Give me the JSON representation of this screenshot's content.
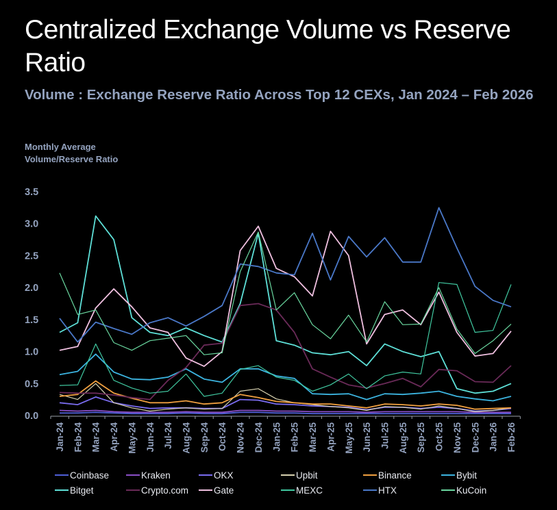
{
  "chart_data": {
    "type": "line",
    "title": "Centralized Exchange Volume vs Reserve Ratio",
    "subtitle": "Volume : Exchange Reserve Ratio Across Top 12 CEXs, Jan 2024 – Feb 2026",
    "xlabel": "",
    "ylabel": "Monthly Average Volume/Reserve Ratio",
    "ylim": [
      0,
      3.5
    ],
    "yticks": [
      "0.0",
      "0.5",
      "1.0",
      "1.5",
      "2.0",
      "2.5",
      "3.0",
      "3.5"
    ],
    "grid": false,
    "legend_position": "bottom",
    "x": [
      "Jan-24",
      "Feb-24",
      "Mar-24",
      "Apr-24",
      "May-24",
      "Jun-24",
      "Jul-24",
      "Aug-24",
      "Sep-24",
      "Oct-24",
      "Nov-24",
      "Dec-24",
      "Jan-25",
      "Feb-25",
      "Mar-25",
      "Apr-25",
      "May-25",
      "Jun-25",
      "Jul-25",
      "Aug-25",
      "Sep-25",
      "Oct-25",
      "Nov-25",
      "Dec-25",
      "Jan-26",
      "Feb-26"
    ],
    "series": [
      {
        "name": "Coinbase",
        "color": "#4f5fd8",
        "values": [
          0.04,
          0.04,
          0.05,
          0.04,
          0.03,
          0.03,
          0.03,
          0.04,
          0.03,
          0.03,
          0.05,
          0.05,
          0.04,
          0.04,
          0.03,
          0.03,
          0.03,
          0.03,
          0.03,
          0.03,
          0.03,
          0.03,
          0.03,
          0.03,
          0.03,
          0.03
        ]
      },
      {
        "name": "Kraken",
        "color": "#8a4fc8",
        "values": [
          0.08,
          0.07,
          0.08,
          0.06,
          0.05,
          0.05,
          0.05,
          0.06,
          0.05,
          0.05,
          0.08,
          0.08,
          0.07,
          0.07,
          0.06,
          0.06,
          0.06,
          0.05,
          0.06,
          0.06,
          0.06,
          0.06,
          0.06,
          0.05,
          0.05,
          0.05
        ]
      },
      {
        "name": "OKX",
        "color": "#7a6cf0",
        "values": [
          0.2,
          0.17,
          0.29,
          0.2,
          0.15,
          0.11,
          0.12,
          0.12,
          0.11,
          0.11,
          0.25,
          0.24,
          0.18,
          0.17,
          0.15,
          0.14,
          0.13,
          0.09,
          0.13,
          0.13,
          0.11,
          0.13,
          0.11,
          0.07,
          0.08,
          0.11
        ]
      },
      {
        "name": "Upbit",
        "color": "#d8d2b0",
        "values": [
          0.33,
          0.25,
          0.5,
          0.2,
          0.12,
          0.07,
          0.1,
          0.12,
          0.1,
          0.11,
          0.38,
          0.42,
          0.26,
          0.2,
          0.17,
          0.14,
          0.12,
          0.08,
          0.14,
          0.13,
          0.1,
          0.15,
          0.11,
          0.06,
          0.08,
          0.12
        ]
      },
      {
        "name": "Binance",
        "color": "#f0a040",
        "values": [
          0.3,
          0.33,
          0.54,
          0.35,
          0.27,
          0.2,
          0.2,
          0.23,
          0.18,
          0.2,
          0.33,
          0.28,
          0.22,
          0.2,
          0.18,
          0.18,
          0.15,
          0.12,
          0.18,
          0.17,
          0.15,
          0.18,
          0.16,
          0.1,
          0.11,
          0.12
        ]
      },
      {
        "name": "Bybit",
        "color": "#3cb4e0",
        "values": [
          0.64,
          0.69,
          0.96,
          0.68,
          0.57,
          0.56,
          0.6,
          0.73,
          0.57,
          0.52,
          0.73,
          0.73,
          0.62,
          0.58,
          0.34,
          0.33,
          0.34,
          0.25,
          0.34,
          0.33,
          0.35,
          0.38,
          0.3,
          0.26,
          0.23,
          0.3
        ]
      },
      {
        "name": "Bitget",
        "color": "#5ee0d8",
        "values": [
          1.3,
          1.45,
          3.12,
          2.75,
          1.53,
          1.3,
          1.25,
          1.37,
          1.25,
          1.15,
          1.75,
          2.85,
          1.17,
          1.1,
          0.98,
          0.95,
          1.0,
          0.78,
          1.12,
          1.0,
          0.92,
          1.0,
          0.42,
          0.35,
          0.38,
          0.5
        ]
      },
      {
        "name": "Crypto.com",
        "color": "#6a2a58",
        "values": [
          0.36,
          0.35,
          0.35,
          0.32,
          0.28,
          0.25,
          0.55,
          0.75,
          1.1,
          1.13,
          1.72,
          1.75,
          1.65,
          1.3,
          0.73,
          0.6,
          0.48,
          0.43,
          0.5,
          0.58,
          0.45,
          0.72,
          0.7,
          0.53,
          0.52,
          0.78
        ]
      },
      {
        "name": "Gate",
        "color": "#f0c0e0",
        "values": [
          1.02,
          1.08,
          1.68,
          1.98,
          1.7,
          1.37,
          1.3,
          0.9,
          0.77,
          1.0,
          2.58,
          2.96,
          2.3,
          2.17,
          1.87,
          2.88,
          2.5,
          1.12,
          1.58,
          1.65,
          1.42,
          1.93,
          1.3,
          0.93,
          0.97,
          1.32
        ]
      },
      {
        "name": "MEXC",
        "color": "#40c8a0",
        "values": [
          0.47,
          0.48,
          1.12,
          0.55,
          0.43,
          0.35,
          0.38,
          0.65,
          0.3,
          0.35,
          0.72,
          0.78,
          0.6,
          0.55,
          0.38,
          0.48,
          0.65,
          0.42,
          0.62,
          0.68,
          0.65,
          2.08,
          2.05,
          1.3,
          1.33,
          2.05
        ]
      },
      {
        "name": "HTX",
        "color": "#4a78c8",
        "values": [
          1.52,
          1.15,
          1.46,
          1.36,
          1.27,
          1.45,
          1.53,
          1.4,
          1.55,
          1.72,
          2.37,
          2.33,
          2.23,
          2.2,
          2.85,
          2.12,
          2.8,
          2.48,
          2.78,
          2.4,
          2.4,
          3.25,
          2.62,
          2.02,
          1.8,
          1.7
        ]
      },
      {
        "name": "KuCoin",
        "color": "#6ad8a0",
        "values": [
          2.23,
          1.58,
          1.65,
          1.14,
          1.02,
          1.17,
          1.21,
          1.25,
          0.95,
          0.98,
          2.25,
          2.87,
          1.65,
          1.92,
          1.42,
          1.2,
          1.57,
          1.15,
          1.78,
          1.42,
          1.43,
          2.0,
          1.35,
          0.97,
          1.17,
          1.43
        ]
      }
    ]
  },
  "header": {
    "title": "Centralized Exchange Volume vs Reserve Ratio",
    "subtitle": "Volume : Exchange Reserve Ratio Across Top 12 CEXs, Jan 2024 – Feb 2026",
    "ylabel": "Monthly Average Volume/Reserve Ratio"
  }
}
